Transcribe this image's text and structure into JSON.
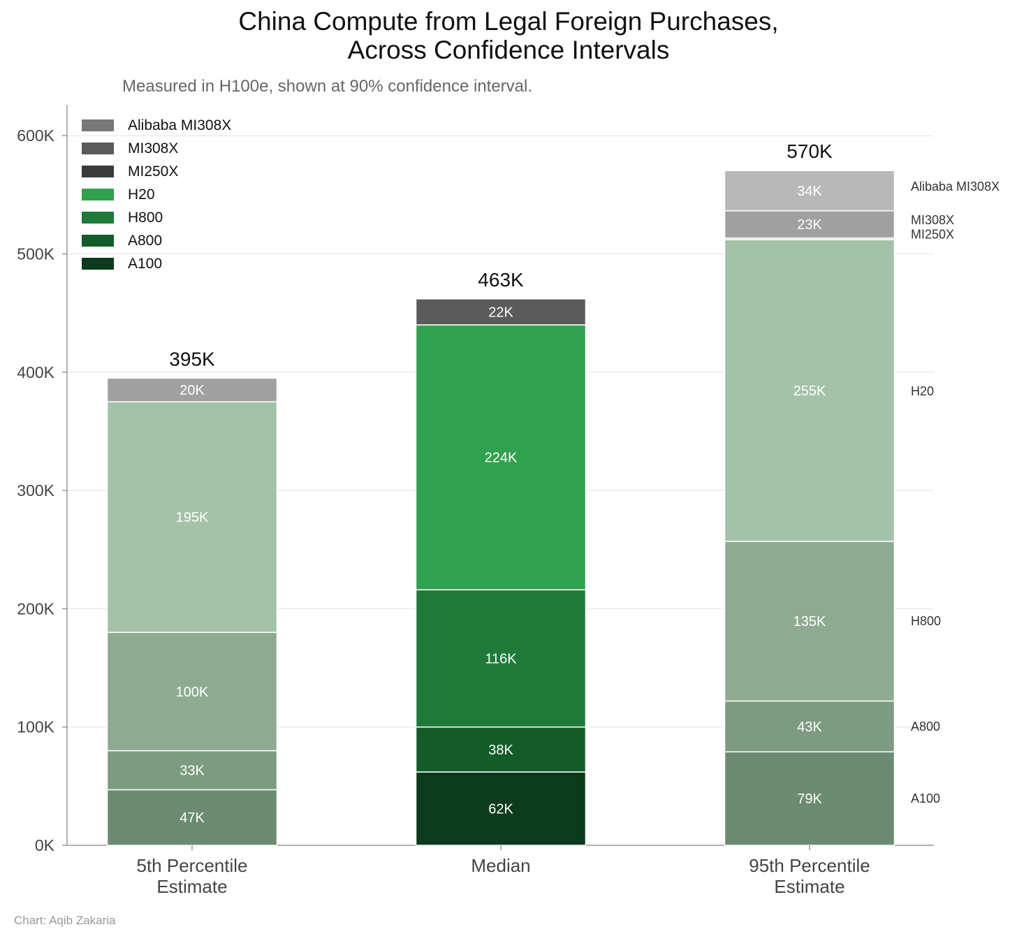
{
  "chart_data": {
    "type": "bar",
    "stacked": true,
    "title": [
      "China Compute from Legal Foreign Purchases,",
      "Across Confidence Intervals"
    ],
    "subtitle": "Measured in H100e, shown at 90% confidence interval.",
    "credit": "Chart: Aqib Zakaria",
    "xlabel": "",
    "ylabel": "",
    "ylim": [
      0,
      625000
    ],
    "yticks": [
      0,
      100000,
      200000,
      300000,
      400000,
      500000,
      600000
    ],
    "ytick_labels": [
      "0K",
      "100K",
      "200K",
      "300K",
      "400K",
      "500K",
      "600K"
    ],
    "grid": "horizontal",
    "legend_placement": "top-left",
    "categories": [
      [
        "5th Percentile",
        "Estimate"
      ],
      [
        "Median"
      ],
      [
        "95th Percentile",
        "Estimate"
      ]
    ],
    "totals": [
      "395K",
      "463K",
      "570K"
    ],
    "legend": [
      {
        "name": "Alibaba MI308X",
        "color": "#787878"
      },
      {
        "name": "MI308X",
        "color": "#5a5a5a"
      },
      {
        "name": "MI250X",
        "color": "#3a3a3a"
      },
      {
        "name": "H20",
        "color": "#30a14e"
      },
      {
        "name": "H800",
        "color": "#1f7a3a"
      },
      {
        "name": "A800",
        "color": "#135c2a"
      },
      {
        "name": "A100",
        "color": "#0b3b1c"
      }
    ],
    "series": [
      {
        "name": "A100",
        "values": [
          47000,
          62000,
          79000
        ],
        "labels": [
          "47K",
          "62K",
          "79K"
        ],
        "colors": [
          "#6c8b72",
          "#0b3b1c",
          "#6c8b72"
        ]
      },
      {
        "name": "A800",
        "values": [
          33000,
          38000,
          43000
        ],
        "labels": [
          "33K",
          "38K",
          "43K"
        ],
        "colors": [
          "#7d9b80",
          "#135c2a",
          "#7d9b80"
        ]
      },
      {
        "name": "H800",
        "values": [
          100000,
          116000,
          135000
        ],
        "labels": [
          "100K",
          "116K",
          "135K"
        ],
        "colors": [
          "#8eab92",
          "#1f7a3a",
          "#8eab92"
        ]
      },
      {
        "name": "H20",
        "values": [
          195000,
          224000,
          255000
        ],
        "labels": [
          "195K",
          "224K",
          "255K"
        ],
        "colors": [
          "#a3c2a8",
          "#30a14e",
          "#a3c2a8"
        ]
      },
      {
        "name": "MI250X",
        "values": [
          0,
          0,
          1500
        ],
        "labels": [
          "",
          "",
          ""
        ],
        "colors": [
          "#3a3a3a",
          "#3a3a3a",
          "#d0d0d0"
        ]
      },
      {
        "name": "MI308X",
        "values": [
          20000,
          22000,
          23000
        ],
        "labels": [
          "20K",
          "22K",
          "23K"
        ],
        "colors": [
          "#a0a0a0",
          "#5a5a5a",
          "#a0a0a0"
        ]
      },
      {
        "name": "Alibaba MI308X",
        "values": [
          0,
          0,
          34000
        ],
        "labels": [
          "",
          "",
          "34K"
        ],
        "colors": [
          "#b8b8b8",
          "#b8b8b8",
          "#b8b8b8"
        ]
      }
    ],
    "right_labels": [
      {
        "text": "Alibaba MI308X",
        "y": 557000
      },
      {
        "text": "MI308X",
        "y": 528500
      },
      {
        "text": "MI250X",
        "y": 516500
      },
      {
        "text": "H20",
        "y": 384000
      },
      {
        "text": "H800",
        "y": 189500
      },
      {
        "text": "A800",
        "y": 100500
      },
      {
        "text": "A100",
        "y": 39500
      }
    ]
  }
}
